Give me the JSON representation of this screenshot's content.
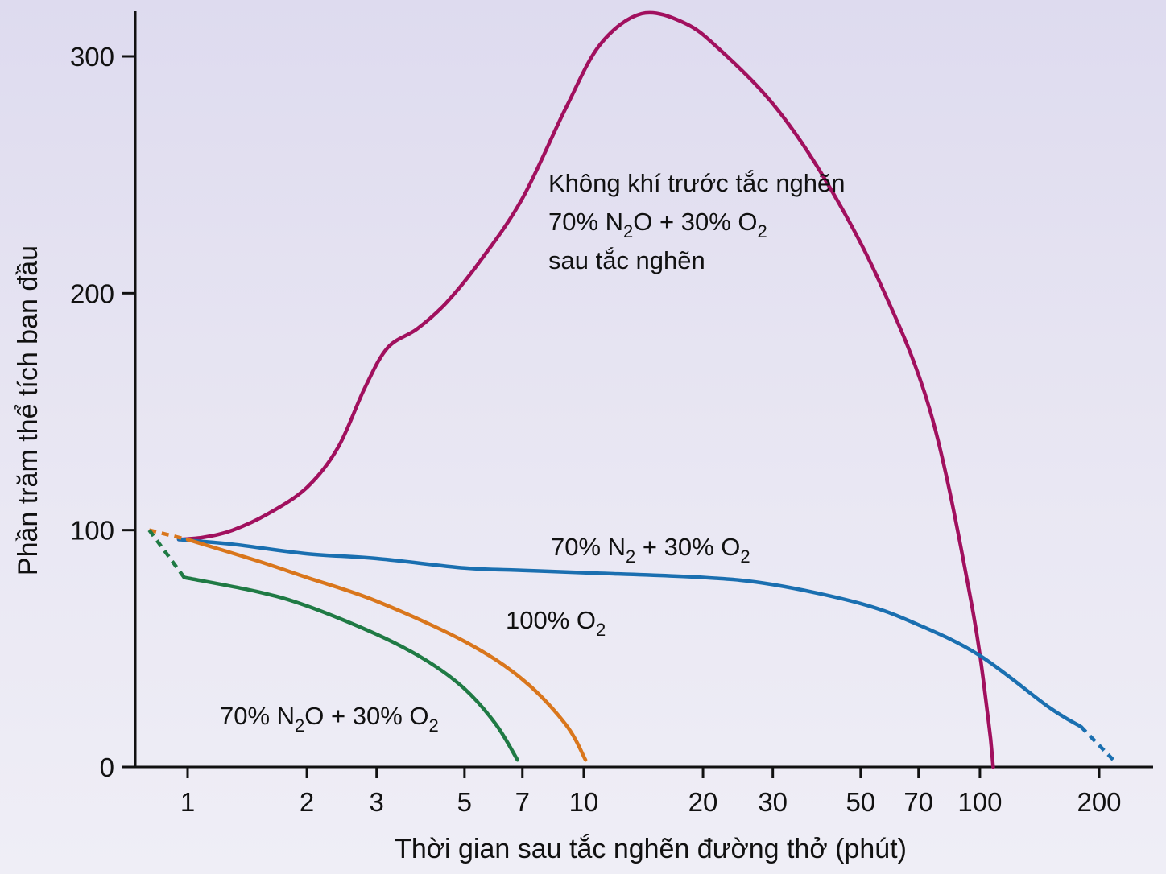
{
  "chart_data": {
    "type": "line",
    "xlabel": "Thời gian sau tắc nghẽn đường thở (phút)",
    "ylabel": "Phần trăm thể tích ban đầu",
    "x_scale": "log",
    "xlim": [
      0.75,
      270
    ],
    "ylim": [
      0,
      320
    ],
    "x_ticks": [
      1,
      2,
      3,
      5,
      7,
      10,
      20,
      30,
      50,
      70,
      100,
      200
    ],
    "y_ticks": [
      0,
      100,
      200,
      300
    ],
    "grid": false,
    "colors": {
      "air_n2o": "#a1105e",
      "n2_o2": "#1a6fb0",
      "o2": "#d9761c",
      "n2o_o2": "#1f7a44"
    },
    "series": [
      {
        "key": "air_n2o",
        "label_lines": [
          {
            "text": "Không khí trước tắc nghẽn"
          },
          {
            "text": "70% N",
            "sub": "2",
            "after": "O + 30% O",
            "sub2": "2"
          },
          {
            "text": "sau tắc nghẽn"
          }
        ],
        "x": [
          0.95,
          1.1,
          1.3,
          1.6,
          2.0,
          2.4,
          2.8,
          3.2,
          3.8,
          4.5,
          5.5,
          7,
          9,
          11,
          14,
          18,
          22,
          30,
          40,
          55,
          75,
          95,
          105,
          108
        ],
        "y": [
          96,
          97,
          100,
          107,
          118,
          135,
          160,
          177,
          185,
          196,
          214,
          240,
          278,
          305,
          318,
          314,
          303,
          280,
          250,
          207,
          150,
          70,
          20,
          0
        ]
      },
      {
        "key": "n2_o2",
        "label_lines": [
          {
            "text": "70% N",
            "sub": "2",
            "after": " + 30% O",
            "sub2": "2"
          }
        ],
        "x": [
          0.95,
          1.3,
          2,
          3,
          5,
          7,
          10,
          20,
          30,
          50,
          70,
          100,
          150,
          180,
          220
        ],
        "y": [
          96,
          94,
          90,
          88,
          84,
          83,
          82,
          80,
          77,
          69,
          60,
          47,
          25,
          17,
          2
        ],
        "dashed_from_x": 180
      },
      {
        "key": "o2",
        "label_lines": [
          {
            "text": "100% O",
            "sub": "2"
          }
        ],
        "x": [
          0.8,
          1.0,
          1.5,
          2,
          3,
          5,
          7,
          9,
          10.1
        ],
        "y": [
          100,
          96,
          87,
          80,
          70,
          53,
          37,
          18,
          3
        ],
        "dashed_to_x": 1.0
      },
      {
        "key": "n2o_o2",
        "label_lines": [
          {
            "text": "70% N",
            "sub": "2",
            "after": "O + 30% O",
            "sub2": "2"
          }
        ],
        "x": [
          0.8,
          0.98,
          1.5,
          2,
          3,
          4,
          5,
          6,
          6.8
        ],
        "y": [
          100,
          80,
          74,
          68,
          56,
          45,
          33,
          18,
          3
        ],
        "dashed_to_x": 0.98
      }
    ]
  }
}
